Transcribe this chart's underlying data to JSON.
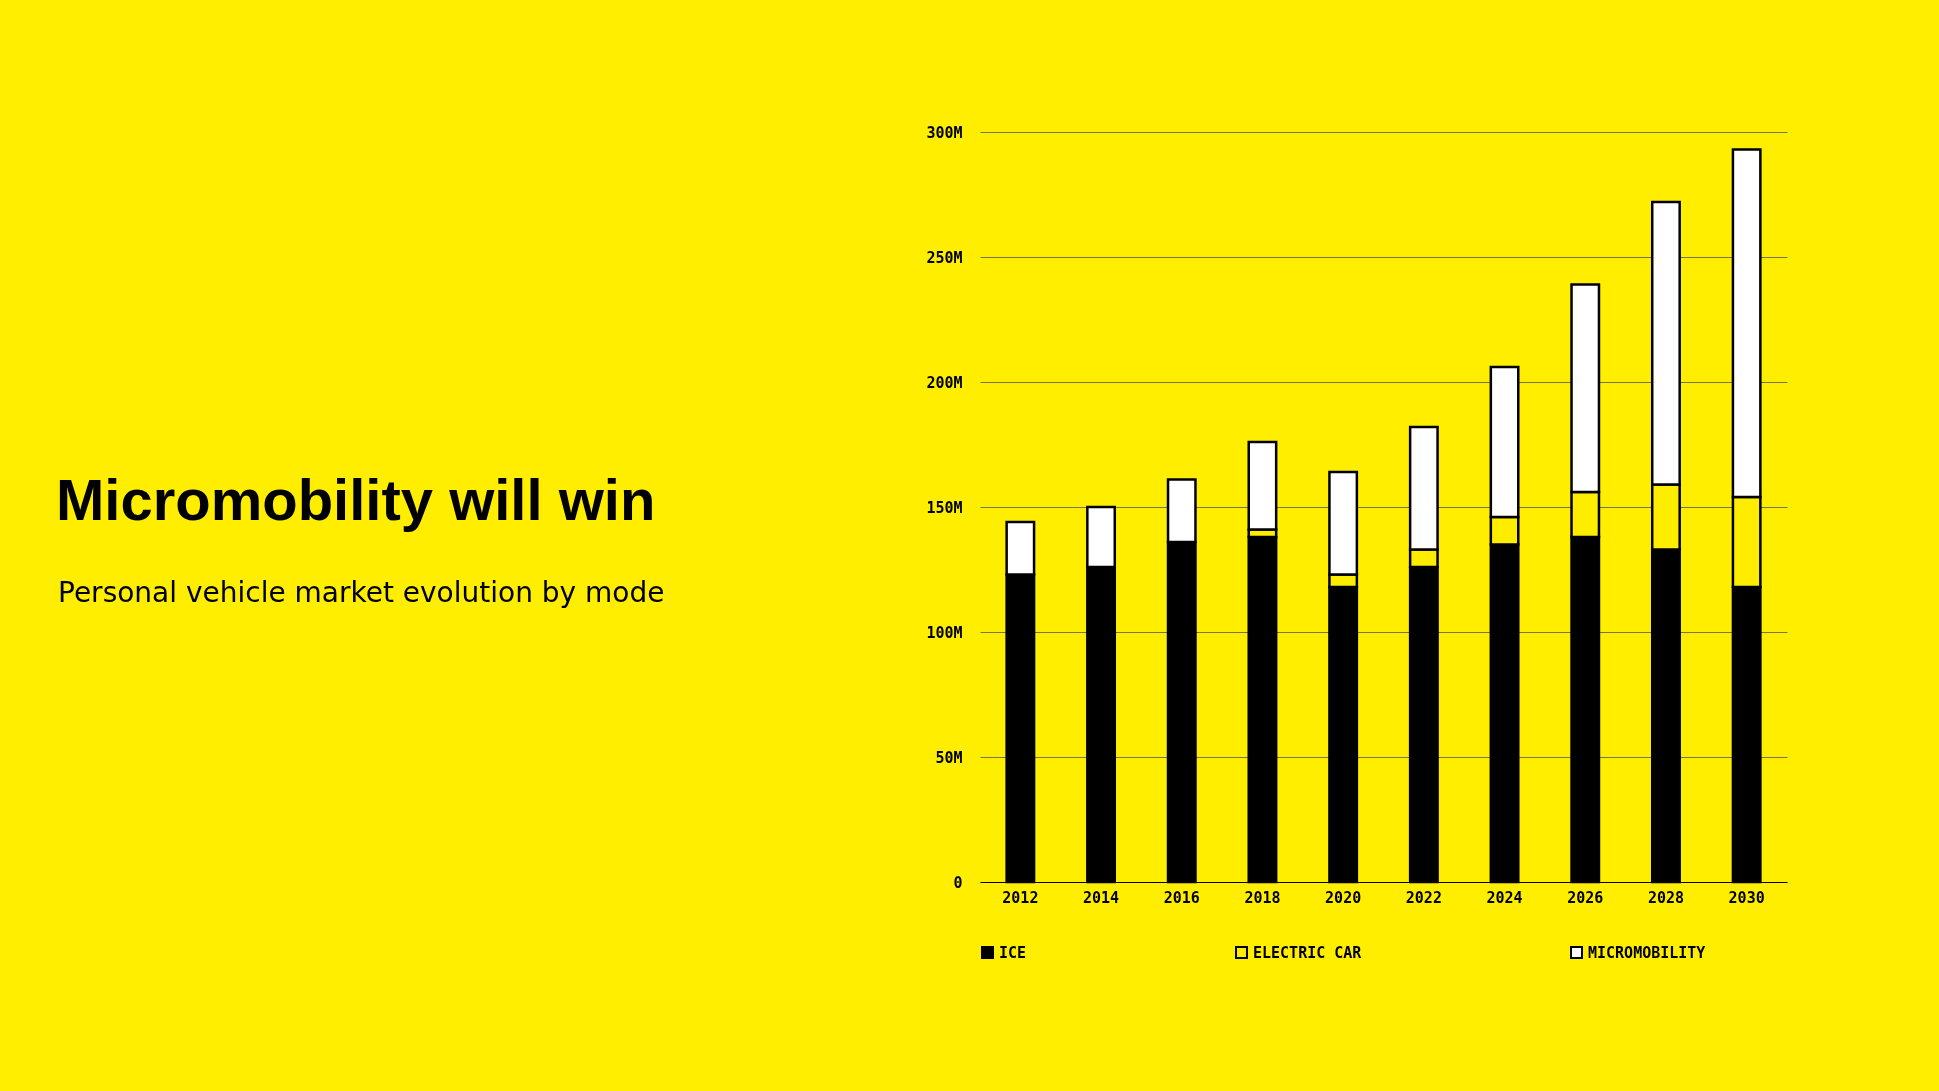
{
  "chart_data": {
    "type": "bar",
    "title": "Micromobility will win",
    "subtitle": "Personal vehicle market evolution by mode",
    "categories": [
      "2012",
      "2014",
      "2016",
      "2018",
      "2020",
      "2022",
      "2024",
      "2026",
      "2028",
      "2030"
    ],
    "stacked": true,
    "series": [
      {
        "name": "ICE",
        "color": "#000000",
        "values": [
          123,
          126,
          136,
          138,
          118,
          126,
          135,
          138,
          133,
          118
        ]
      },
      {
        "name": "ELECTRIC CAR",
        "color": "#ffed00",
        "values": [
          null,
          null,
          null,
          3,
          5,
          7,
          11,
          18,
          26,
          36
        ]
      },
      {
        "name": "MICROMOBILITY",
        "color": "#ffffff",
        "values": [
          21,
          24,
          25,
          35,
          41,
          49,
          60,
          83,
          113,
          139
        ]
      }
    ],
    "ylim": [
      0,
      300
    ],
    "yticks": [
      0,
      {
        "value": 50,
        "label": "50M"
      },
      {
        "value": 100,
        "label": "100M"
      },
      {
        "value": 150,
        "label": "150M"
      },
      {
        "value": 200,
        "label": "200M"
      },
      {
        "value": 250,
        "label": "250M"
      },
      {
        "value": 300,
        "label": "300M"
      }
    ],
    "grid": "y",
    "legend": "bottom"
  }
}
